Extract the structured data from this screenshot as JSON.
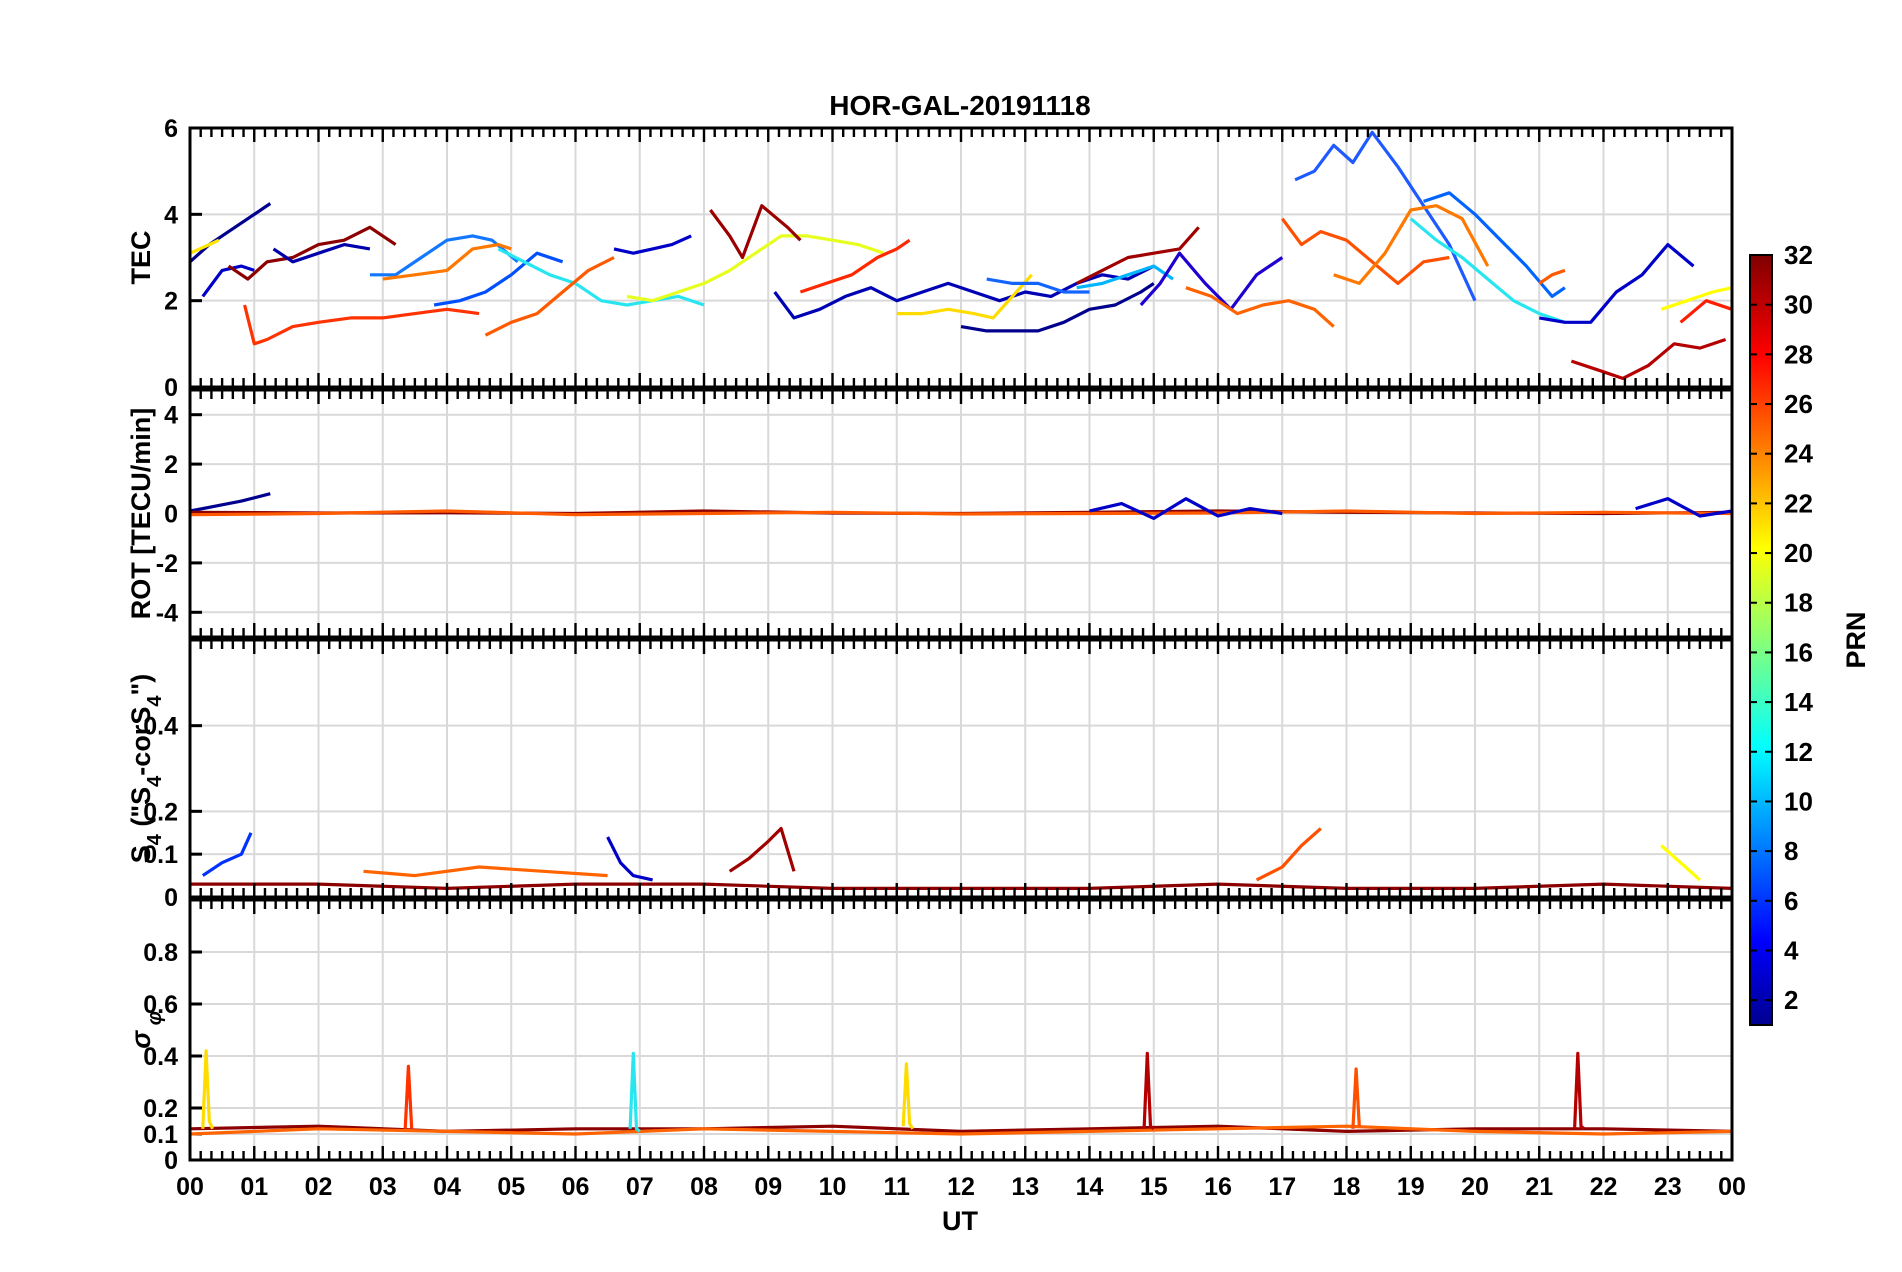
{
  "figure": {
    "title": "HOR-GAL-20191118",
    "x_axis_label": "UT"
  },
  "chart_data": [
    {
      "type": "line",
      "panel": "tec",
      "ylabel": "TEC",
      "xlim": [
        0,
        24
      ],
      "ylim": [
        0,
        6
      ],
      "yticks": [
        "0",
        "2",
        "4",
        "6"
      ],
      "xticks": [
        "00",
        "01",
        "02",
        "03",
        "04",
        "05",
        "06",
        "07",
        "08",
        "09",
        "10",
        "11",
        "12",
        "13",
        "14",
        "15",
        "16",
        "17",
        "18",
        "19",
        "20",
        "21",
        "22",
        "23",
        "00"
      ],
      "series": [
        {
          "color": "#00008f",
          "x": [
            0.0,
            0.3,
            0.6,
            0.9,
            1.25
          ],
          "y": [
            2.9,
            3.3,
            3.6,
            3.9,
            4.25
          ]
        },
        {
          "color": "#0000c8",
          "x": [
            0.2,
            0.5,
            0.8,
            1.0
          ],
          "y": [
            2.1,
            2.7,
            2.8,
            2.7
          ]
        },
        {
          "color": "#ffe600",
          "x": [
            0.0,
            0.15,
            0.3,
            0.45
          ],
          "y": [
            3.1,
            3.2,
            3.3,
            3.4
          ]
        },
        {
          "color": "#8c0000",
          "x": [
            0.6,
            0.9,
            1.2,
            1.6,
            2.0,
            2.4,
            2.8,
            3.2
          ],
          "y": [
            2.8,
            2.5,
            2.9,
            3.0,
            3.3,
            3.4,
            3.7,
            3.3
          ]
        },
        {
          "color": "#ff3200",
          "x": [
            0.85,
            1.0,
            1.2,
            1.6,
            2.0,
            2.5,
            3.0,
            3.5,
            4.0,
            4.5
          ],
          "y": [
            1.9,
            1.0,
            1.1,
            1.4,
            1.5,
            1.6,
            1.6,
            1.7,
            1.8,
            1.7
          ]
        },
        {
          "color": "#0000aa",
          "x": [
            1.3,
            1.6,
            2.0,
            2.4,
            2.8
          ],
          "y": [
            3.2,
            2.9,
            3.1,
            3.3,
            3.2
          ]
        },
        {
          "color": "#1478ff",
          "x": [
            2.8,
            3.2,
            3.6,
            4.0,
            4.4,
            4.7,
            5.1
          ],
          "y": [
            2.6,
            2.6,
            3.0,
            3.4,
            3.5,
            3.4,
            2.9
          ]
        },
        {
          "color": "#ff7800",
          "x": [
            3.0,
            3.5,
            4.0,
            4.4,
            4.8,
            5.0
          ],
          "y": [
            2.5,
            2.6,
            2.7,
            3.2,
            3.3,
            3.2
          ]
        },
        {
          "color": "#0050ff",
          "x": [
            3.8,
            4.2,
            4.6,
            5.0,
            5.4,
            5.8
          ],
          "y": [
            1.9,
            2.0,
            2.2,
            2.6,
            3.1,
            2.9
          ]
        },
        {
          "color": "#28e6f0",
          "x": [
            4.8,
            5.2,
            5.6,
            6.0,
            6.4,
            6.8,
            7.2,
            7.6,
            8.0
          ],
          "y": [
            3.2,
            2.9,
            2.6,
            2.4,
            2.0,
            1.9,
            2.0,
            2.1,
            1.9
          ]
        },
        {
          "color": "#ff5a00",
          "x": [
            4.6,
            5.0,
            5.4,
            5.8,
            6.2,
            6.6
          ],
          "y": [
            1.2,
            1.5,
            1.7,
            2.2,
            2.7,
            3.0
          ]
        },
        {
          "color": "#0000c8",
          "x": [
            6.6,
            6.9,
            7.2,
            7.5,
            7.8
          ],
          "y": [
            3.2,
            3.1,
            3.2,
            3.3,
            3.5
          ]
        },
        {
          "color": "#e6ff1e",
          "x": [
            6.8,
            7.2,
            7.6,
            8.0,
            8.4,
            8.8,
            9.2,
            9.6,
            10.0,
            10.4,
            10.8
          ],
          "y": [
            2.1,
            2.0,
            2.2,
            2.4,
            2.7,
            3.1,
            3.5,
            3.5,
            3.4,
            3.3,
            3.1
          ]
        },
        {
          "color": "#9b0000",
          "x": [
            8.1,
            8.4,
            8.6,
            8.9,
            9.3,
            9.5
          ],
          "y": [
            4.1,
            3.5,
            3.0,
            4.2,
            3.7,
            3.4
          ]
        },
        {
          "color": "#ff2800",
          "x": [
            9.5,
            9.9,
            10.3,
            10.7,
            11.0,
            11.2
          ],
          "y": [
            2.2,
            2.4,
            2.6,
            3.0,
            3.2,
            3.4
          ]
        },
        {
          "color": "#0000b4",
          "x": [
            9.1,
            9.4,
            9.8,
            10.2,
            10.6,
            11.0,
            11.4,
            11.8,
            12.2,
            12.6,
            13.0,
            13.4,
            13.8,
            14.2,
            14.6,
            15.0
          ],
          "y": [
            2.2,
            1.6,
            1.8,
            2.1,
            2.3,
            2.0,
            2.2,
            2.4,
            2.2,
            2.0,
            2.2,
            2.1,
            2.4,
            2.6,
            2.5,
            2.8
          ]
        },
        {
          "color": "#ffdc00",
          "x": [
            11.0,
            11.4,
            11.8,
            12.2,
            12.5,
            12.8,
            13.1
          ],
          "y": [
            1.7,
            1.7,
            1.8,
            1.7,
            1.6,
            2.1,
            2.6
          ]
        },
        {
          "color": "#1464ff",
          "x": [
            12.4,
            12.8,
            13.2,
            13.6,
            14.0
          ],
          "y": [
            2.5,
            2.4,
            2.4,
            2.2,
            2.2
          ]
        },
        {
          "color": "#00008c",
          "x": [
            12.0,
            12.4,
            12.8,
            13.2,
            13.6,
            14.0,
            14.4,
            14.8,
            15.0
          ],
          "y": [
            1.4,
            1.3,
            1.3,
            1.3,
            1.5,
            1.8,
            1.9,
            2.2,
            2.4
          ]
        },
        {
          "color": "#00b4ff",
          "x": [
            13.8,
            14.2,
            14.6,
            15.0,
            15.3
          ],
          "y": [
            2.3,
            2.4,
            2.6,
            2.8,
            2.5
          ]
        },
        {
          "color": "#a00000",
          "x": [
            13.8,
            14.2,
            14.6,
            15.0,
            15.4,
            15.7
          ],
          "y": [
            2.4,
            2.7,
            3.0,
            3.1,
            3.2,
            3.7
          ]
        },
        {
          "color": "#1e00d2",
          "x": [
            14.8,
            15.1,
            15.4,
            15.8,
            16.2,
            16.6,
            17.0
          ],
          "y": [
            1.9,
            2.4,
            3.1,
            2.4,
            1.8,
            2.6,
            3.0
          ]
        },
        {
          "color": "#ff6400",
          "x": [
            15.5,
            15.9,
            16.3,
            16.7,
            17.1,
            17.5,
            17.8
          ],
          "y": [
            2.3,
            2.1,
            1.7,
            1.9,
            2.0,
            1.8,
            1.4
          ]
        },
        {
          "color": "#ff5000",
          "x": [
            17.0,
            17.3,
            17.6,
            18.0,
            18.4,
            18.8,
            19.2,
            19.6
          ],
          "y": [
            3.9,
            3.3,
            3.6,
            3.4,
            2.9,
            2.4,
            2.9,
            3.0
          ]
        },
        {
          "color": "#1e5aff",
          "x": [
            17.2,
            17.5,
            17.8,
            18.1,
            18.4,
            18.8,
            19.2,
            19.6,
            20.0
          ],
          "y": [
            4.8,
            5.0,
            5.6,
            5.2,
            5.9,
            5.1,
            4.2,
            3.3,
            2.0
          ]
        },
        {
          "color": "#ff7800",
          "x": [
            17.8,
            18.2,
            18.6,
            19.0,
            19.4,
            19.8,
            20.2
          ],
          "y": [
            2.6,
            2.4,
            3.1,
            4.1,
            4.2,
            3.9,
            2.8
          ]
        },
        {
          "color": "#0064ff",
          "x": [
            19.2,
            19.6,
            20.0,
            20.4,
            20.8,
            21.2,
            21.4
          ],
          "y": [
            4.3,
            4.5,
            4.0,
            3.4,
            2.8,
            2.1,
            2.3
          ]
        },
        {
          "color": "#28e6f0",
          "x": [
            19.0,
            19.4,
            19.8,
            20.2,
            20.6,
            21.0,
            21.4
          ],
          "y": [
            3.9,
            3.4,
            3.0,
            2.5,
            2.0,
            1.7,
            1.5
          ]
        },
        {
          "color": "#ff5a00",
          "x": [
            21.0,
            21.2,
            21.4
          ],
          "y": [
            2.4,
            2.6,
            2.7
          ]
        },
        {
          "color": "#0000c8",
          "x": [
            21.0,
            21.4,
            21.8,
            22.2,
            22.6,
            23.0,
            23.4
          ],
          "y": [
            1.6,
            1.5,
            1.5,
            2.2,
            2.6,
            3.3,
            2.8
          ]
        },
        {
          "color": "#ffff00",
          "x": [
            22.9,
            23.3,
            23.7,
            24.0
          ],
          "y": [
            1.8,
            2.0,
            2.2,
            2.3
          ]
        },
        {
          "color": "#b40000",
          "x": [
            21.5,
            21.9,
            22.3,
            22.7,
            23.1,
            23.5,
            23.9
          ],
          "y": [
            0.6,
            0.4,
            0.2,
            0.5,
            1.0,
            0.9,
            1.1
          ]
        },
        {
          "color": "#ff1e00",
          "x": [
            23.2,
            23.6,
            24.0
          ],
          "y": [
            1.5,
            2.0,
            1.8
          ]
        }
      ]
    },
    {
      "type": "line",
      "panel": "rot",
      "ylabel": "ROT [TECU/min]",
      "xlim": [
        0,
        24
      ],
      "ylim": [
        -5,
        5
      ],
      "yticks": [
        "-4",
        "-2",
        "0",
        "2",
        "4"
      ],
      "series": [
        {
          "color": "#00008f",
          "x": [
            0.0,
            0.4,
            0.8,
            1.25
          ],
          "y": [
            0.1,
            0.3,
            0.5,
            0.8
          ]
        },
        {
          "color": "#8c0000",
          "x": [
            0,
            2,
            4,
            6,
            8,
            10,
            12,
            14,
            16,
            18,
            20,
            22,
            24
          ],
          "y": [
            0.05,
            0.02,
            0.03,
            0.0,
            0.1,
            0.02,
            0.0,
            0.05,
            0.1,
            0.05,
            0.02,
            0.0,
            0.05
          ]
        },
        {
          "color": "#ff5a00",
          "x": [
            0,
            2,
            4,
            6,
            8,
            10,
            12,
            14,
            16,
            18,
            20,
            22,
            24
          ],
          "y": [
            -0.05,
            0.0,
            0.1,
            -0.05,
            0.0,
            0.05,
            -0.02,
            0.0,
            0.02,
            0.1,
            0.0,
            0.05,
            0.0
          ]
        },
        {
          "color": "#0000c8",
          "x": [
            14,
            14.5,
            15,
            15.5,
            16,
            16.5,
            17
          ],
          "y": [
            0.1,
            0.4,
            -0.2,
            0.6,
            -0.1,
            0.2,
            0.0
          ]
        },
        {
          "color": "#0000c8",
          "x": [
            22.5,
            23.0,
            23.5,
            24.0
          ],
          "y": [
            0.2,
            0.6,
            -0.1,
            0.1
          ]
        }
      ]
    },
    {
      "type": "line",
      "panel": "s4",
      "ylabel": "S4 (\"S4-corS4\")",
      "xlim": [
        0,
        24
      ],
      "ylim": [
        0,
        0.6
      ],
      "yticks": [
        "0",
        "0.1",
        "0.2",
        "0.4"
      ],
      "series": [
        {
          "color": "#0032ff",
          "x": [
            0.2,
            0.5,
            0.8,
            0.95
          ],
          "y": [
            0.05,
            0.08,
            0.1,
            0.15
          ]
        },
        {
          "color": "#8c0000",
          "x": [
            0,
            2,
            4,
            6,
            8,
            10,
            12,
            14,
            16,
            18,
            20,
            22,
            24
          ],
          "y": [
            0.03,
            0.03,
            0.02,
            0.03,
            0.03,
            0.02,
            0.02,
            0.02,
            0.03,
            0.02,
            0.02,
            0.03,
            0.02
          ]
        },
        {
          "color": "#ff6400",
          "x": [
            2.7,
            3.5,
            4.5,
            5.5,
            6.5
          ],
          "y": [
            0.06,
            0.05,
            0.07,
            0.06,
            0.05
          ]
        },
        {
          "color": "#0000c8",
          "x": [
            6.5,
            6.7,
            6.9,
            7.2
          ],
          "y": [
            0.14,
            0.08,
            0.05,
            0.04
          ]
        },
        {
          "color": "#a00000",
          "x": [
            8.4,
            8.7,
            9.0,
            9.2,
            9.4
          ],
          "y": [
            0.06,
            0.09,
            0.13,
            0.16,
            0.06
          ]
        },
        {
          "color": "#ff5000",
          "x": [
            16.6,
            17.0,
            17.3,
            17.6
          ],
          "y": [
            0.04,
            0.07,
            0.12,
            0.16
          ]
        },
        {
          "color": "#ffff00",
          "x": [
            22.9,
            23.2,
            23.5
          ],
          "y": [
            0.12,
            0.08,
            0.04
          ]
        }
      ]
    },
    {
      "type": "line",
      "panel": "sigma",
      "ylabel": "σ φ",
      "xlim": [
        0,
        24
      ],
      "ylim": [
        0,
        1
      ],
      "yticks": [
        "0",
        "0.1",
        "0.2",
        "0.4",
        "0.6",
        "0.8"
      ],
      "series": [
        {
          "color": "#8c0000",
          "x": [
            0,
            2,
            4,
            6,
            8,
            10,
            12,
            14,
            16,
            18,
            20,
            22,
            24
          ],
          "y": [
            0.12,
            0.13,
            0.11,
            0.12,
            0.12,
            0.13,
            0.11,
            0.12,
            0.13,
            0.11,
            0.12,
            0.12,
            0.11
          ]
        },
        {
          "color": "#ff6400",
          "x": [
            0,
            2,
            4,
            6,
            8,
            10,
            12,
            14,
            16,
            18,
            20,
            22,
            24
          ],
          "y": [
            0.1,
            0.12,
            0.11,
            0.1,
            0.12,
            0.11,
            0.1,
            0.11,
            0.12,
            0.13,
            0.11,
            0.1,
            0.11
          ]
        },
        {
          "color": "#ffdc00",
          "x": [
            0.2,
            0.25,
            0.3,
            0.35
          ],
          "y": [
            0.12,
            0.42,
            0.15,
            0.12
          ]
        },
        {
          "color": "#28e6f0",
          "x": [
            6.85,
            6.9,
            6.95,
            7.0
          ],
          "y": [
            0.12,
            0.41,
            0.12,
            0.11
          ]
        },
        {
          "color": "#ffdc00",
          "x": [
            11.1,
            11.15,
            11.2,
            11.25
          ],
          "y": [
            0.13,
            0.37,
            0.14,
            0.12
          ]
        },
        {
          "color": "#b40000",
          "x": [
            14.85,
            14.9,
            14.95,
            15.0
          ],
          "y": [
            0.12,
            0.41,
            0.13,
            0.12
          ]
        },
        {
          "color": "#b40000",
          "x": [
            21.55,
            21.6,
            21.65,
            21.7
          ],
          "y": [
            0.12,
            0.41,
            0.13,
            0.12
          ]
        },
        {
          "color": "#ff3200",
          "x": [
            3.35,
            3.4,
            3.45
          ],
          "y": [
            0.12,
            0.36,
            0.12
          ]
        },
        {
          "color": "#ff5000",
          "x": [
            18.1,
            18.15,
            18.2
          ],
          "y": [
            0.12,
            0.35,
            0.13
          ]
        }
      ]
    }
  ],
  "colorbar": {
    "label": "PRN",
    "min": 1,
    "max": 32,
    "ticks": [
      "2",
      "4",
      "6",
      "8",
      "10",
      "12",
      "14",
      "16",
      "18",
      "20",
      "22",
      "24",
      "26",
      "28",
      "30",
      "32"
    ]
  }
}
